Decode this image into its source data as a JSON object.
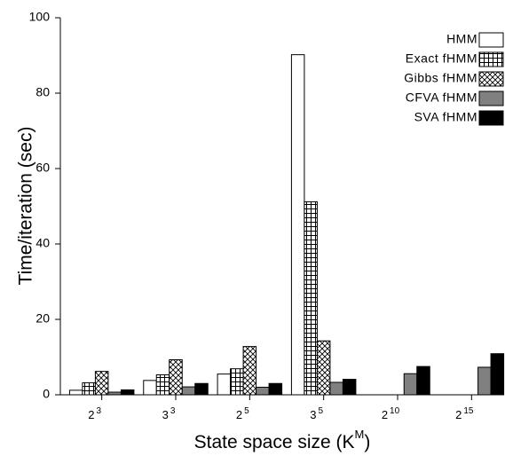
{
  "chart_data": {
    "type": "bar",
    "x_label": {
      "text": "State space size (K",
      "superscript": "M",
      "suffix": ")"
    },
    "y_label": "Time/iteration (sec)",
    "categories": [
      {
        "base": "2",
        "exponent": "3"
      },
      {
        "base": "3",
        "exponent": "3"
      },
      {
        "base": "2",
        "exponent": "5"
      },
      {
        "base": "3",
        "exponent": "5"
      },
      {
        "base": "2",
        "exponent": "10"
      },
      {
        "base": "2",
        "exponent": "15"
      }
    ],
    "series": [
      {
        "name": "HMM",
        "color": "#ffffff",
        "pattern": "none",
        "values": [
          1.2,
          3.8,
          5.5,
          90.2,
          null,
          null
        ]
      },
      {
        "name": "Exact fHMM",
        "color": "#ffffff",
        "pattern": "grid",
        "values": [
          3.2,
          5.3,
          6.9,
          51.2,
          null,
          null
        ]
      },
      {
        "name": "Gibbs fHMM",
        "color": "#ffffff",
        "pattern": "crosshatch",
        "values": [
          6.2,
          9.3,
          12.8,
          14.3,
          null,
          null
        ]
      },
      {
        "name": "CFVA fHMM",
        "color": "#808080",
        "pattern": "none",
        "values": [
          0.7,
          2.1,
          2.0,
          3.3,
          5.6,
          7.3
        ]
      },
      {
        "name": "SVA fHMM",
        "color": "#000000",
        "pattern": "none",
        "values": [
          1.3,
          3.0,
          3.0,
          4.1,
          7.5,
          10.9
        ]
      }
    ],
    "ylim": [
      0,
      100
    ],
    "yticks": [
      0,
      20,
      40,
      60,
      80,
      100
    ],
    "legend": "top-right"
  }
}
